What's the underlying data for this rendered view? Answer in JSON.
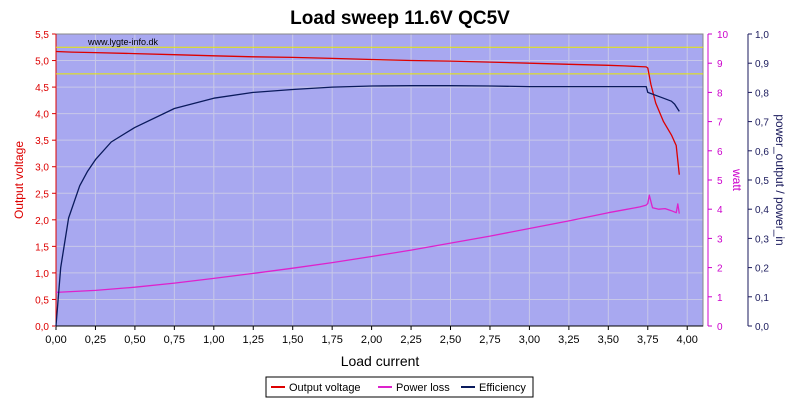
{
  "chart_data": {
    "type": "line",
    "title": "Load sweep 11.6V QC5V",
    "watermark": "www.lygte-info.dk",
    "xlabel": "Load current",
    "ylabel_left": "Output voltage",
    "ylabel_right1": "watt",
    "ylabel_right2": "power_output / power_in",
    "xlim": [
      0,
      4.1
    ],
    "ylim_left": [
      0,
      5.5
    ],
    "ylim_right1": [
      0,
      10
    ],
    "ylim_right2": [
      0,
      1.0
    ],
    "x_ticks": [
      "0,00",
      "0,25",
      "0,50",
      "0,75",
      "1,00",
      "1,25",
      "1,50",
      "1,75",
      "2,00",
      "2,25",
      "2,50",
      "2,75",
      "3,00",
      "3,25",
      "3,50",
      "3,75",
      "4,00"
    ],
    "y_left_ticks": [
      "0,0",
      "0,5",
      "1,0",
      "1,5",
      "2,0",
      "2,5",
      "3,0",
      "3,5",
      "4,0",
      "4,5",
      "5,0",
      "5,5"
    ],
    "y_right1_ticks": [
      "0",
      "1",
      "2",
      "3",
      "4",
      "5",
      "6",
      "7",
      "8",
      "9",
      "10"
    ],
    "y_right2_ticks": [
      "0,0",
      "0,1",
      "0,2",
      "0,3",
      "0,4",
      "0,5",
      "0,6",
      "0,7",
      "0,8",
      "0,9",
      "1,0"
    ],
    "reference_lines": [
      5.25,
      4.75
    ],
    "grid": true,
    "legend_position": "bottom-center",
    "colors": {
      "plot_bg": "#a8a8f0",
      "grid": "#c8c8e8",
      "voltage": "#dd0000",
      "power_loss": "#dd22cc",
      "efficiency": "#0a1a5c",
      "reference": "#e8e800",
      "left_axis": "#dd0000",
      "right1_axis": "#cc00cc",
      "right2_axis": "#1a1a5c"
    },
    "series": [
      {
        "name": "Output voltage",
        "axis": "left",
        "x": [
          0,
          0.1,
          0.25,
          0.5,
          0.75,
          1.0,
          1.25,
          1.5,
          1.75,
          2.0,
          2.25,
          2.5,
          2.75,
          3.0,
          3.25,
          3.5,
          3.6,
          3.74,
          3.75,
          3.77,
          3.8,
          3.85,
          3.9,
          3.93,
          3.95
        ],
        "y": [
          5.17,
          5.16,
          5.15,
          5.13,
          5.11,
          5.09,
          5.07,
          5.06,
          5.04,
          5.02,
          5.0,
          4.99,
          4.97,
          4.95,
          4.93,
          4.91,
          4.9,
          4.88,
          4.86,
          4.55,
          4.2,
          3.85,
          3.6,
          3.4,
          2.85
        ]
      },
      {
        "name": "Power loss",
        "axis": "right1",
        "x": [
          0,
          0.25,
          0.5,
          0.75,
          1.0,
          1.25,
          1.5,
          1.75,
          2.0,
          2.25,
          2.5,
          2.75,
          3.0,
          3.25,
          3.5,
          3.6,
          3.7,
          3.74,
          3.75,
          3.76,
          3.78,
          3.82,
          3.86,
          3.9,
          3.93,
          3.94,
          3.95
        ],
        "y": [
          1.15,
          1.22,
          1.33,
          1.47,
          1.63,
          1.8,
          1.98,
          2.17,
          2.38,
          2.6,
          2.84,
          3.08,
          3.34,
          3.6,
          3.88,
          3.98,
          4.08,
          4.14,
          4.2,
          4.48,
          4.05,
          4.0,
          4.02,
          3.95,
          3.88,
          4.18,
          3.85
        ]
      },
      {
        "name": "Efficiency",
        "axis": "right2",
        "x": [
          0,
          0.03,
          0.08,
          0.15,
          0.2,
          0.25,
          0.35,
          0.5,
          0.75,
          1.0,
          1.25,
          1.5,
          1.75,
          2.0,
          2.25,
          2.5,
          2.75,
          3.0,
          3.25,
          3.5,
          3.6,
          3.74,
          3.75,
          3.8,
          3.85,
          3.9,
          3.92,
          3.95
        ],
        "y": [
          0.0,
          0.2,
          0.37,
          0.48,
          0.53,
          0.57,
          0.63,
          0.68,
          0.745,
          0.78,
          0.8,
          0.81,
          0.818,
          0.822,
          0.823,
          0.823,
          0.822,
          0.82,
          0.82,
          0.82,
          0.82,
          0.82,
          0.8,
          0.79,
          0.78,
          0.77,
          0.76,
          0.735
        ]
      }
    ]
  }
}
